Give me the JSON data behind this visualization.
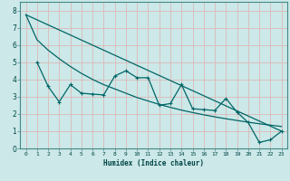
{
  "title": "",
  "xlabel": "Humidex (Indice chaleur)",
  "bg_color": "#cce8e8",
  "grid_color": "#ddb8b8",
  "line_color": "#006666",
  "xlim": [
    -0.5,
    23.5
  ],
  "ylim": [
    0,
    8.5
  ],
  "xticks": [
    0,
    1,
    2,
    3,
    4,
    5,
    6,
    7,
    8,
    9,
    10,
    11,
    12,
    13,
    14,
    15,
    16,
    17,
    18,
    19,
    20,
    21,
    22,
    23
  ],
  "yticks": [
    0,
    1,
    2,
    3,
    4,
    5,
    6,
    7,
    8
  ],
  "line1_x": [
    0,
    1,
    2,
    3,
    4,
    5,
    6,
    7,
    8,
    9,
    10,
    11,
    12,
    13,
    14,
    15,
    16,
    17,
    18,
    19,
    20,
    21,
    22,
    23
  ],
  "line1_y": [
    7.75,
    6.3,
    5.7,
    5.2,
    4.75,
    4.35,
    4.0,
    3.7,
    3.45,
    3.2,
    2.95,
    2.75,
    2.55,
    2.38,
    2.22,
    2.08,
    1.95,
    1.83,
    1.72,
    1.62,
    1.52,
    1.43,
    1.35,
    1.27
  ],
  "line2_x": [
    1,
    2,
    3,
    4,
    5,
    6,
    7,
    8,
    9,
    10,
    11,
    12,
    13,
    14,
    15,
    16,
    17,
    18,
    19,
    20,
    21,
    22,
    23
  ],
  "line2_y": [
    5.0,
    3.6,
    2.7,
    3.7,
    3.2,
    3.15,
    3.1,
    4.2,
    4.5,
    4.1,
    4.1,
    2.5,
    2.6,
    3.7,
    2.3,
    2.25,
    2.2,
    2.9,
    2.1,
    1.5,
    0.35,
    0.5,
    1.0
  ],
  "line3_x": [
    0,
    23
  ],
  "line3_y": [
    7.75,
    1.0
  ]
}
